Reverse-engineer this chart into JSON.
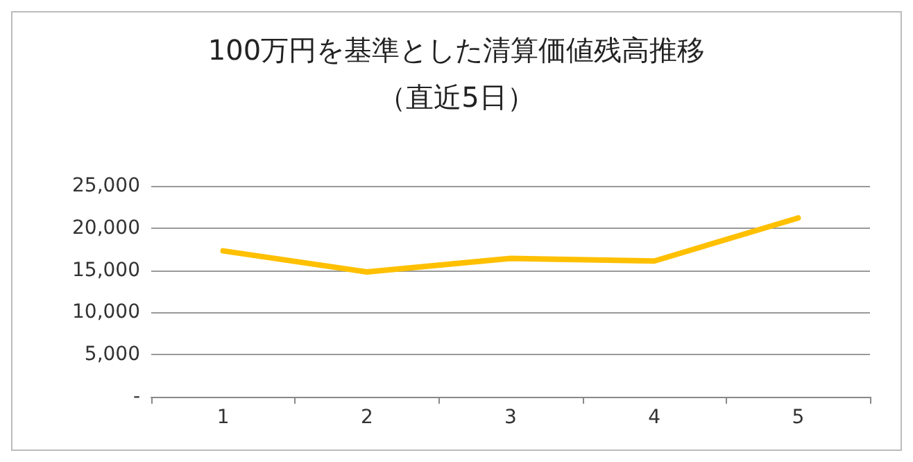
{
  "chart_data": {
    "type": "line",
    "title": "100万円を基準とした清算価値残高推移",
    "subtitle": "（直近5日）",
    "categories": [
      "1",
      "2",
      "3",
      "4",
      "5"
    ],
    "series": [
      {
        "color": "#ffc000",
        "values": [
          17300,
          14800,
          16400,
          16100,
          21200
        ]
      }
    ],
    "ylim": [
      0,
      25000
    ],
    "yticks": [
      {
        "value": 0,
        "label": "-"
      },
      {
        "value": 5000,
        "label": "5,000"
      },
      {
        "value": 10000,
        "label": "10,000"
      },
      {
        "value": 15000,
        "label": "15,000"
      },
      {
        "value": 20000,
        "label": "20,000"
      },
      {
        "value": 25000,
        "label": "25,000"
      }
    ],
    "grid": "y",
    "marker": "none",
    "line_style": "solid"
  }
}
